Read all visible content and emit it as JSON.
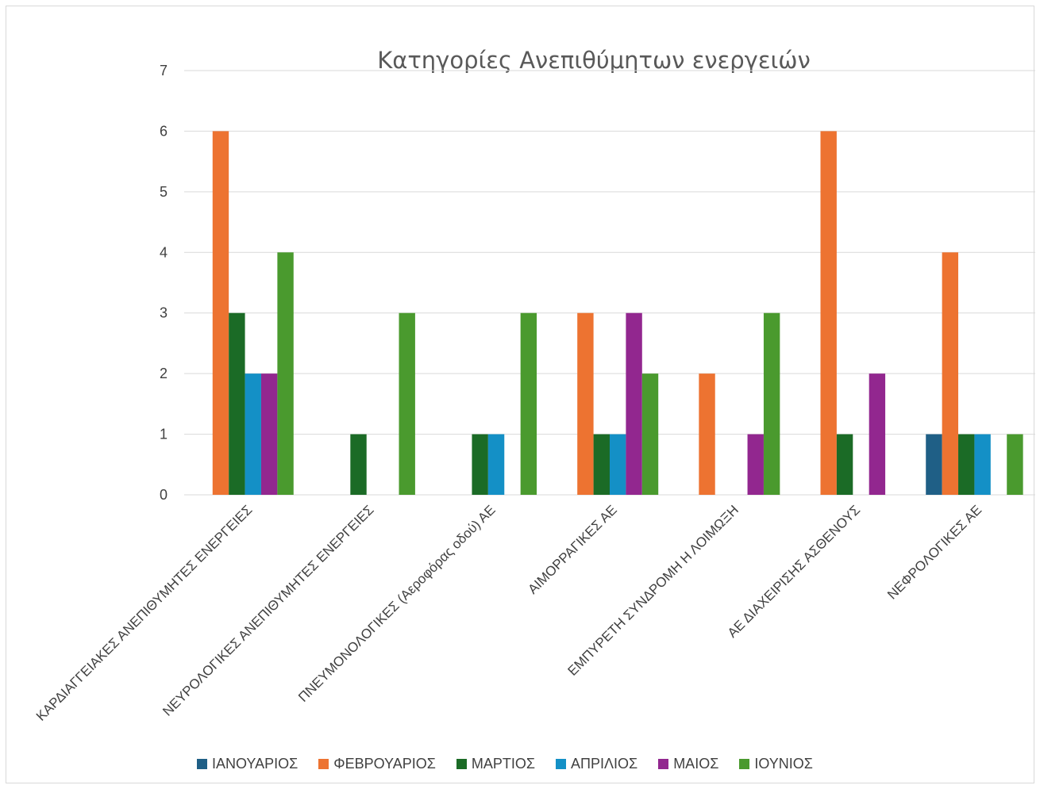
{
  "chart_data": {
    "type": "bar",
    "title": "Κατηγορίες Ανεπιθύμητων ενεργειών",
    "categories": [
      "ΚΑΡΔΙΑΓΓΕΙΑΚΕΣ ΑΝΕΠΙΘΥΜΗΤΕΣ ΕΝΕΡΓΕΙΕΣ",
      "ΝΕΥΡΟΛΟΓΙΚΕΣ ΑΝΕΠΙΘΥΜΗΤΕΣ ΕΝΕΡΓΕΙΕΣ",
      "ΠΝΕΥΜΟΝΟΛΟΓΙΚΕΣ (Αεροφόρας οδού) ΑΕ",
      "ΑΙΜΟΡΡΑΓΙΚΕΣ ΑΕ",
      "ΕΜΠΥΡΕΤΗ ΣΥΝΔΡΟΜΗ Η ΛΟΙΜΩΞΗ",
      "ΑΕ ΔΙΑΧΕΙΡΙΣΗΣ ΑΣΘΕΝΟΥΣ",
      "ΝΕΦΡΟΛΟΓΙΚΕΣ ΑΕ"
    ],
    "series": [
      {
        "name": "ΙΑΝΟΥΑΡΙΟΣ",
        "color": "#1f5f86",
        "values": [
          0,
          0,
          0,
          0,
          0,
          0,
          1
        ]
      },
      {
        "name": "ΦΕΒΡΟΥΑΡΙΟΣ",
        "color": "#ed7331",
        "values": [
          6,
          0,
          0,
          3,
          2,
          6,
          4
        ]
      },
      {
        "name": "ΜΑΡΤΙΟΣ",
        "color": "#1b6b26",
        "values": [
          3,
          1,
          1,
          1,
          0,
          1,
          1
        ]
      },
      {
        "name": "ΑΠΡΙΛΙΟΣ",
        "color": "#1490c6",
        "values": [
          2,
          0,
          1,
          1,
          0,
          0,
          1
        ]
      },
      {
        "name": "ΜΑΙΟΣ",
        "color": "#92278f",
        "values": [
          2,
          0,
          0,
          3,
          1,
          2,
          0
        ]
      },
      {
        "name": "ΙΟΥΝΙΟΣ",
        "color": "#4a9a2e",
        "values": [
          4,
          3,
          3,
          2,
          3,
          0,
          1
        ]
      }
    ],
    "ylim": [
      0,
      7
    ],
    "yticks": [
      "0",
      "1",
      "2",
      "3",
      "4",
      "5",
      "6",
      "7"
    ],
    "grid": true,
    "legend_position": "bottom"
  }
}
